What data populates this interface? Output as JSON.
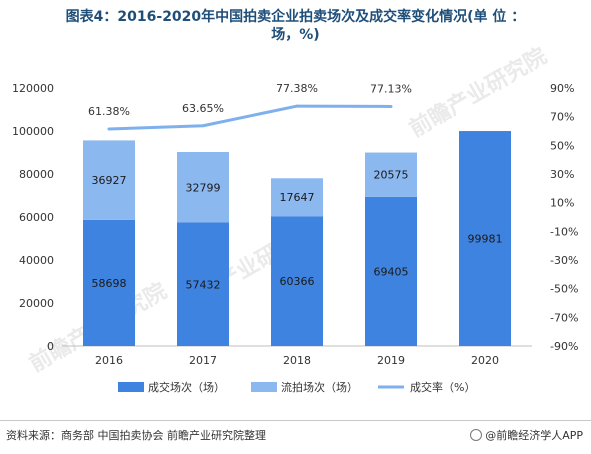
{
  "title_line1": "图表4：2016-2020年中国拍卖企业拍卖场次及成交率变化情况(单 位 ：",
  "title_line2": "场，%)",
  "source": "资料来源：商务部 中国拍卖协会 前瞻产业研究院整理",
  "brand": "@前瞻经济学人APP",
  "watermark": "前瞻产业研究院",
  "colors": {
    "success": "#3f83e0",
    "unsold": "#8cb8f0",
    "rate": "#7fb0ee"
  },
  "chart_data": {
    "type": "bar",
    "stacked": true,
    "categories": [
      "2016",
      "2017",
      "2018",
      "2019",
      "2020"
    ],
    "series": [
      {
        "name": "成交场次（场）",
        "values": [
          58698,
          57432,
          60366,
          69405,
          99981
        ],
        "axis": "left"
      },
      {
        "name": "流拍场次（场）",
        "values": [
          36927,
          32799,
          17647,
          20575,
          null
        ],
        "axis": "left"
      },
      {
        "name": "成交率（%）",
        "type": "line",
        "values": [
          61.38,
          63.65,
          77.38,
          77.13,
          null
        ],
        "axis": "right",
        "labels": [
          "61.38%",
          "63.65%",
          "77.38%",
          "77.13%",
          ""
        ]
      }
    ],
    "ylim": [
      0,
      120000
    ],
    "yticks": [
      0,
      20000,
      40000,
      60000,
      80000,
      100000,
      120000
    ],
    "y2lim": [
      -90,
      90
    ],
    "y2ticks": [
      "90%",
      "70%",
      "50%",
      "30%",
      "10%",
      "-10%",
      "-30%",
      "-50%",
      "-70%",
      "-90%"
    ],
    "legend_position": "bottom"
  }
}
